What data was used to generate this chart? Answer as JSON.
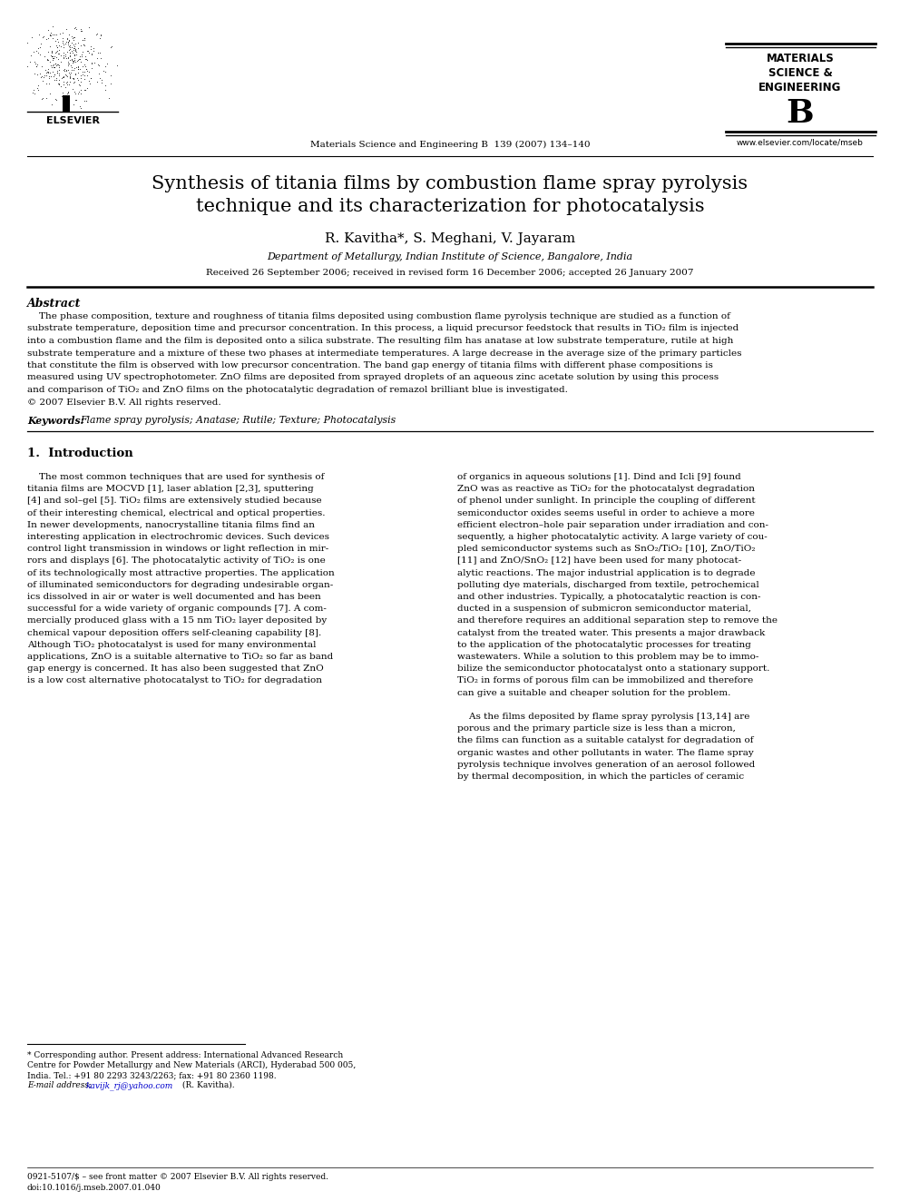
{
  "bg_color": "#ffffff",
  "journal_header": "Materials Science and Engineering B  139 (2007) 134–140",
  "journal_name_line1": "MATERIALS",
  "journal_name_line2": "SCIENCE &",
  "journal_name_line3": "ENGINEERING",
  "journal_name_letter": "B",
  "journal_url": "www.elsevier.com/locate/mseb",
  "paper_title_line1": "Synthesis of titania films by combustion flame spray pyrolysis",
  "paper_title_line2": "technique and its characterization for photocatalysis",
  "authors": "R. Kavitha*, S. Meghani, V. Jayaram",
  "affiliation": "Department of Metallurgy, Indian Institute of Science, Bangalore, India",
  "received": "Received 26 September 2006; received in revised form 16 December 2006; accepted 26 January 2007",
  "abstract_title": "Abstract",
  "keywords_label": "Keywords:",
  "keywords_text": "Flame spray pyrolysis; Anatase; Rutile; Texture; Photocatalysis",
  "section1_title": "1.  Introduction",
  "abstract_lines": [
    "    The phase composition, texture and roughness of titania films deposited using combustion flame pyrolysis technique are studied as a function of",
    "substrate temperature, deposition time and precursor concentration. In this process, a liquid precursor feedstock that results in TiO₂ film is injected",
    "into a combustion flame and the film is deposited onto a silica substrate. The resulting film has anatase at low substrate temperature, rutile at high",
    "substrate temperature and a mixture of these two phases at intermediate temperatures. A large decrease in the average size of the primary particles",
    "that constitute the film is observed with low precursor concentration. The band gap energy of titania films with different phase compositions is",
    "measured using UV spectrophotometer. ZnO films are deposited from sprayed droplets of an aqueous zinc acetate solution by using this process",
    "and comparison of TiO₂ and ZnO films on the photocatalytic degradation of remazol brilliant blue is investigated.",
    "© 2007 Elsevier B.V. All rights reserved."
  ],
  "col1_lines": [
    "    The most common techniques that are used for synthesis of",
    "titania films are MOCVD [1], laser ablation [2,3], sputtering",
    "[4] and sol–gel [5]. TiO₂ films are extensively studied because",
    "of their interesting chemical, electrical and optical properties.",
    "In newer developments, nanocrystalline titania films find an",
    "interesting application in electrochromic devices. Such devices",
    "control light transmission in windows or light reflection in mir-",
    "rors and displays [6]. The photocatalytic activity of TiO₂ is one",
    "of its technologically most attractive properties. The application",
    "of illuminated semiconductors for degrading undesirable organ-",
    "ics dissolved in air or water is well documented and has been",
    "successful for a wide variety of organic compounds [7]. A com-",
    "mercially produced glass with a 15 nm TiO₂ layer deposited by",
    "chemical vapour deposition offers self-cleaning capability [8].",
    "Although TiO₂ photocatalyst is used for many environmental",
    "applications, ZnO is a suitable alternative to TiO₂ so far as band",
    "gap energy is concerned. It has also been suggested that ZnO",
    "is a low cost alternative photocatalyst to TiO₂ for degradation"
  ],
  "col2_lines": [
    "of organics in aqueous solutions [1]. Dind and Icli [9] found",
    "ZnO was as reactive as TiO₂ for the photocatalyst degradation",
    "of phenol under sunlight. In principle the coupling of different",
    "semiconductor oxides seems useful in order to achieve a more",
    "efficient electron–hole pair separation under irradiation and con-",
    "sequently, a higher photocatalytic activity. A large variety of cou-",
    "pled semiconductor systems such as SnO₂/TiO₂ [10], ZnO/TiO₂",
    "[11] and ZnO/SnO₂ [12] have been used for many photocat-",
    "alytic reactions. The major industrial application is to degrade",
    "polluting dye materials, discharged from textile, petrochemical",
    "and other industries. Typically, a photocatalytic reaction is con-",
    "ducted in a suspension of submicron semiconductor material,",
    "and therefore requires an additional separation step to remove the",
    "catalyst from the treated water. This presents a major drawback",
    "to the application of the photocatalytic processes for treating",
    "wastewaters. While a solution to this problem may be to immo-",
    "bilize the semiconductor photocatalyst onto a stationary support.",
    "TiO₂ in forms of porous film can be immobilized and therefore",
    "can give a suitable and cheaper solution for the problem.",
    "",
    "    As the films deposited by flame spray pyrolysis [13,14] are",
    "porous and the primary particle size is less than a micron,",
    "the films can function as a suitable catalyst for degradation of",
    "organic wastes and other pollutants in water. The flame spray",
    "pyrolysis technique involves generation of an aerosol followed",
    "by thermal decomposition, in which the particles of ceramic"
  ],
  "footnote_lines": [
    "* Corresponding author. Present address: International Advanced Research",
    "Centre for Powder Metallurgy and New Materials (ARCI), Hyderabad 500 005,",
    "India. Tel.: +91 80 2293 3243/2263; fax: +91 80 2360 1198."
  ],
  "footnote_email_prefix": "E-mail address: ",
  "footnote_email_link": "kavijk_rj@yahoo.com",
  "footnote_email_suffix": " (R. Kavitha).",
  "footer_line1": "0921-5107/$ – see front matter © 2007 Elsevier B.V. All rights reserved.",
  "footer_line2": "doi:10.1016/j.mseb.2007.01.040"
}
